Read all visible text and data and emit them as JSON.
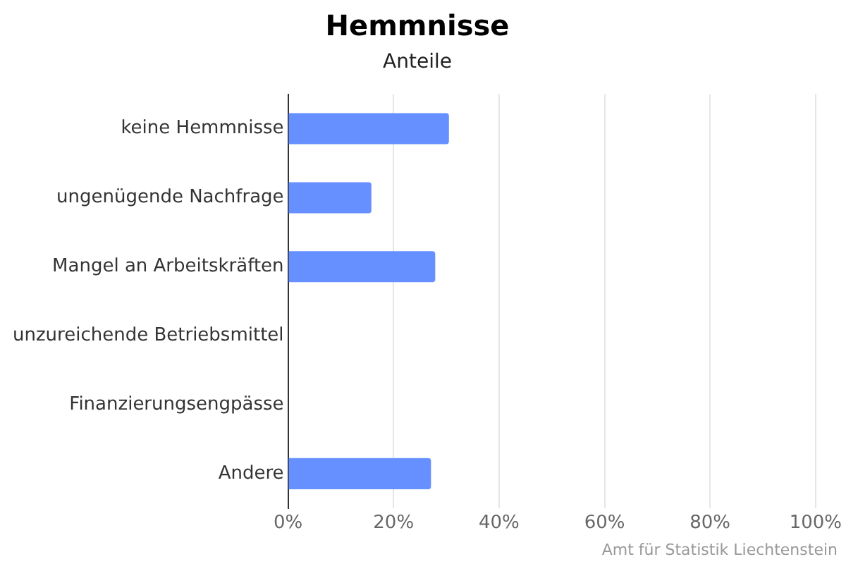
{
  "chart_data": {
    "type": "bar",
    "orientation": "horizontal",
    "title": "Hemmnisse",
    "subtitle": "Anteile",
    "categories": [
      "keine Hemmnisse",
      "ungenügende Nachfrage",
      "Mangel an Arbeitskräften",
      "unzureichende Betriebsmittel",
      "Finanzierungsengpässe",
      "Andere"
    ],
    "values": [
      30.5,
      15.8,
      27.9,
      0,
      0,
      27.1
    ],
    "color": "#6690ff",
    "xlim": [
      0,
      100
    ],
    "xticks": [
      {
        "value": 0,
        "label": "0%"
      },
      {
        "value": 20,
        "label": "20%"
      },
      {
        "value": 40,
        "label": "40%"
      },
      {
        "value": 60,
        "label": "60%"
      },
      {
        "value": 80,
        "label": "80%"
      },
      {
        "value": 100,
        "label": "100%"
      }
    ],
    "grid": "x",
    "annotations": [
      "Amt für Statistik Liechtenstein"
    ]
  }
}
